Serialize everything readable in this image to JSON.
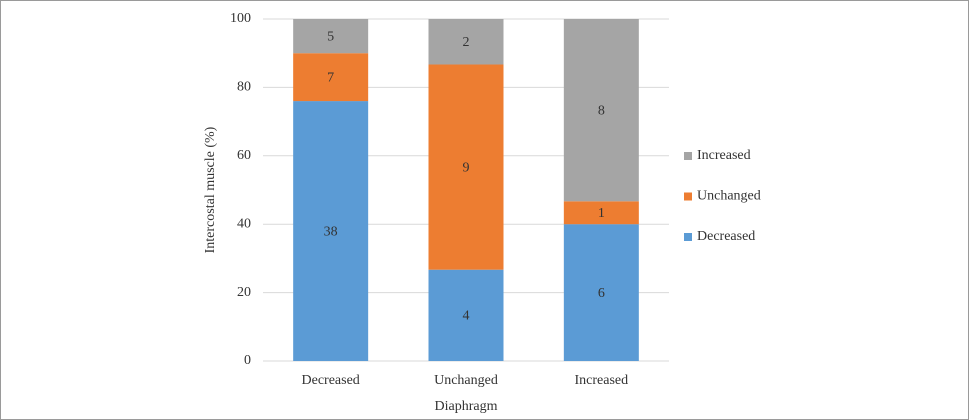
{
  "chart_data": {
    "type": "stacked_bar",
    "x_label": "Diaphragm",
    "y_label": "Intercostal muscle (%)",
    "categories": [
      "Decreased",
      "Unchanged",
      "Increased"
    ],
    "series": [
      {
        "name": "Decreased",
        "color": "#5b9bd5",
        "values": [
          76,
          26.7,
          40
        ],
        "counts": [
          38,
          4,
          6
        ]
      },
      {
        "name": "Unchanged",
        "color": "#ed7d31",
        "values": [
          14,
          60,
          6.7
        ],
        "counts": [
          7,
          9,
          1
        ]
      },
      {
        "name": "Increased",
        "color": "#a5a5a5",
        "values": [
          10,
          13.3,
          53.3
        ],
        "counts": [
          5,
          2,
          8
        ]
      }
    ],
    "ylim": [
      0,
      100
    ],
    "yticks": [
      0,
      20,
      40,
      60,
      80,
      100
    ],
    "grid": true,
    "legend": "right"
  }
}
